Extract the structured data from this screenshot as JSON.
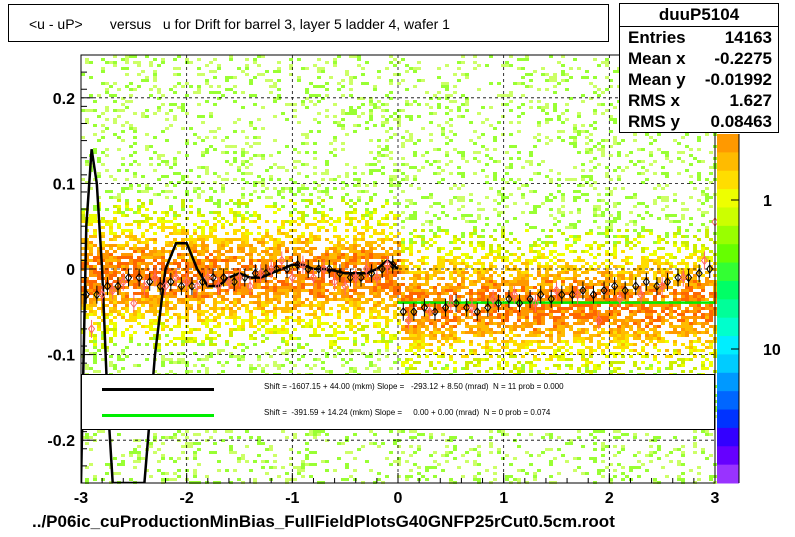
{
  "title": "<u - uP>       versus   u for Drift for barrel 3, layer 5 ladder 4, wafer 1",
  "footer": "../P06ic_cuProductionMinBias_FullFieldPlotsG40GNFP25rCut0.5cm.root",
  "stats": {
    "name": "duuP5104",
    "rows": [
      {
        "label": "Entries",
        "value": "14163"
      },
      {
        "label": "Mean x",
        "value": "-0.2275"
      },
      {
        "label": "Mean y",
        "value": "-0.01992"
      },
      {
        "label": "RMS x",
        "value": "1.627"
      },
      {
        "label": "RMS y",
        "value": "0.08463"
      }
    ]
  },
  "legend": [
    {
      "color": "#000000",
      "text": "Shift = -1607.15 + 44.00 (mkm) Slope =   -293.12 + 8.50 (mrad)  N = 11 prob = 0.000"
    },
    {
      "color": "#00ee00",
      "text": "Shift =  -391.59 + 14.24 (mkm) Slope =     0.00 + 0.00 (mrad)  N = 0 prob = 0.074"
    }
  ],
  "chart_data": {
    "type": "heatmap",
    "title": "<u - uP>       versus   u for Drift for barrel 3, layer 5 ladder 4, wafer 1",
    "xlim": [
      -3,
      3
    ],
    "ylim": [
      -0.25,
      0.25
    ],
    "xticks": [
      -3,
      -2,
      -1,
      0,
      1,
      2,
      3
    ],
    "yticks": [
      -0.2,
      -0.1,
      0,
      0.1,
      0.2
    ],
    "grid": true,
    "colorbar": {
      "scale": "log",
      "labels": [
        "1",
        "10"
      ]
    },
    "profile_black": {
      "x": [
        -2.95,
        -2.85,
        -2.75,
        -2.65,
        -2.55,
        -2.45,
        -2.35,
        -2.25,
        -2.15,
        -2.05,
        -1.95,
        -1.85,
        -1.75,
        -1.65,
        -1.55,
        -1.45,
        -1.35,
        -1.25,
        -1.15,
        -1.05,
        -0.95,
        -0.85,
        -0.75,
        -0.65,
        -0.55,
        -0.45,
        -0.35,
        -0.25,
        -0.15,
        -0.05
      ],
      "y": [
        -0.03,
        -0.03,
        -0.02,
        -0.02,
        -0.01,
        -0.01,
        -0.015,
        -0.02,
        -0.015,
        -0.02,
        -0.02,
        -0.015,
        -0.01,
        -0.01,
        -0.015,
        -0.01,
        -0.005,
        -0.005,
        0.0,
        0.0,
        0.005,
        0.0,
        0.0,
        0.0,
        -0.005,
        -0.01,
        -0.01,
        -0.005,
        0.0,
        0.005
      ]
    },
    "profile_black_right": {
      "x": [
        0.05,
        0.15,
        0.25,
        0.35,
        0.45,
        0.55,
        0.65,
        0.75,
        0.85,
        0.95,
        1.05,
        1.15,
        1.25,
        1.35,
        1.45,
        1.55,
        1.65,
        1.75,
        1.85,
        1.95,
        2.05,
        2.15,
        2.25,
        2.35,
        2.45,
        2.55,
        2.65,
        2.75,
        2.85,
        2.95
      ],
      "y": [
        -0.05,
        -0.05,
        -0.045,
        -0.05,
        -0.045,
        -0.04,
        -0.045,
        -0.05,
        -0.045,
        -0.04,
        -0.035,
        -0.04,
        -0.035,
        -0.03,
        -0.035,
        -0.03,
        -0.03,
        -0.025,
        -0.03,
        -0.025,
        -0.02,
        -0.025,
        -0.02,
        -0.015,
        -0.02,
        -0.015,
        -0.01,
        -0.01,
        -0.005,
        0.0
      ]
    },
    "profile_pink": {
      "x": [
        -2.9,
        -2.8,
        -2.7,
        -2.6,
        -2.5,
        -2.4,
        -2.3,
        -2.2,
        -2.1,
        -2.0,
        -1.9,
        -1.8,
        -1.7,
        -1.6,
        -1.5,
        -1.4,
        -1.3,
        -1.2,
        -1.1,
        -1.0,
        -0.9,
        -0.8,
        -0.7,
        -0.6,
        -0.5,
        -0.4,
        -0.3,
        -0.2,
        -0.1,
        0.1,
        0.3,
        0.5,
        0.7,
        0.9,
        1.1,
        1.3,
        1.5,
        1.7,
        1.9,
        2.1,
        2.3,
        2.5,
        2.7,
        2.9,
        3.0
      ],
      "y": [
        -0.07,
        -0.03,
        -0.025,
        -0.015,
        -0.04,
        -0.02,
        -0.01,
        -0.02,
        -0.01,
        -0.015,
        -0.02,
        -0.01,
        -0.02,
        -0.015,
        -0.01,
        -0.02,
        -0.005,
        0.0,
        0.01,
        -0.01,
        0.005,
        -0.01,
        0.0,
        -0.015,
        -0.02,
        -0.01,
        0.0,
        -0.01,
        0.005,
        -0.06,
        -0.05,
        -0.04,
        -0.045,
        -0.035,
        -0.03,
        -0.04,
        -0.025,
        -0.03,
        -0.06,
        -0.035,
        -0.03,
        -0.02,
        -0.01,
        0.01,
        0.055
      ]
    },
    "fit_black": {
      "x": [
        -3.0,
        -2.95,
        -2.9,
        -2.85,
        -2.8,
        -2.75,
        -2.7,
        -2.6,
        -2.5,
        -2.4,
        -2.3,
        -2.2,
        -2.1,
        -2.0,
        -1.9,
        -1.8,
        -1.7,
        -1.6,
        -1.5,
        -1.4,
        -1.3,
        -1.2,
        -1.1,
        -1.0,
        -0.9,
        -0.8,
        -0.7,
        -0.6,
        -0.5,
        -0.4,
        -0.3,
        -0.2,
        -0.1,
        0.0
      ],
      "y": [
        -0.25,
        0.05,
        0.14,
        0.1,
        0.0,
        -0.15,
        -0.25,
        -0.25,
        -0.25,
        -0.25,
        -0.1,
        0.0,
        0.03,
        0.03,
        0.0,
        -0.02,
        -0.02,
        -0.01,
        -0.005,
        -0.01,
        -0.01,
        -0.005,
        0.0,
        0.005,
        0.005,
        0.0,
        0.0,
        -0.002,
        -0.005,
        -0.005,
        -0.005,
        0.0,
        0.01,
        0.0
      ]
    },
    "fit_green": {
      "x": [
        0.0,
        3.0
      ],
      "y": [
        -0.0392,
        -0.0392
      ]
    }
  }
}
